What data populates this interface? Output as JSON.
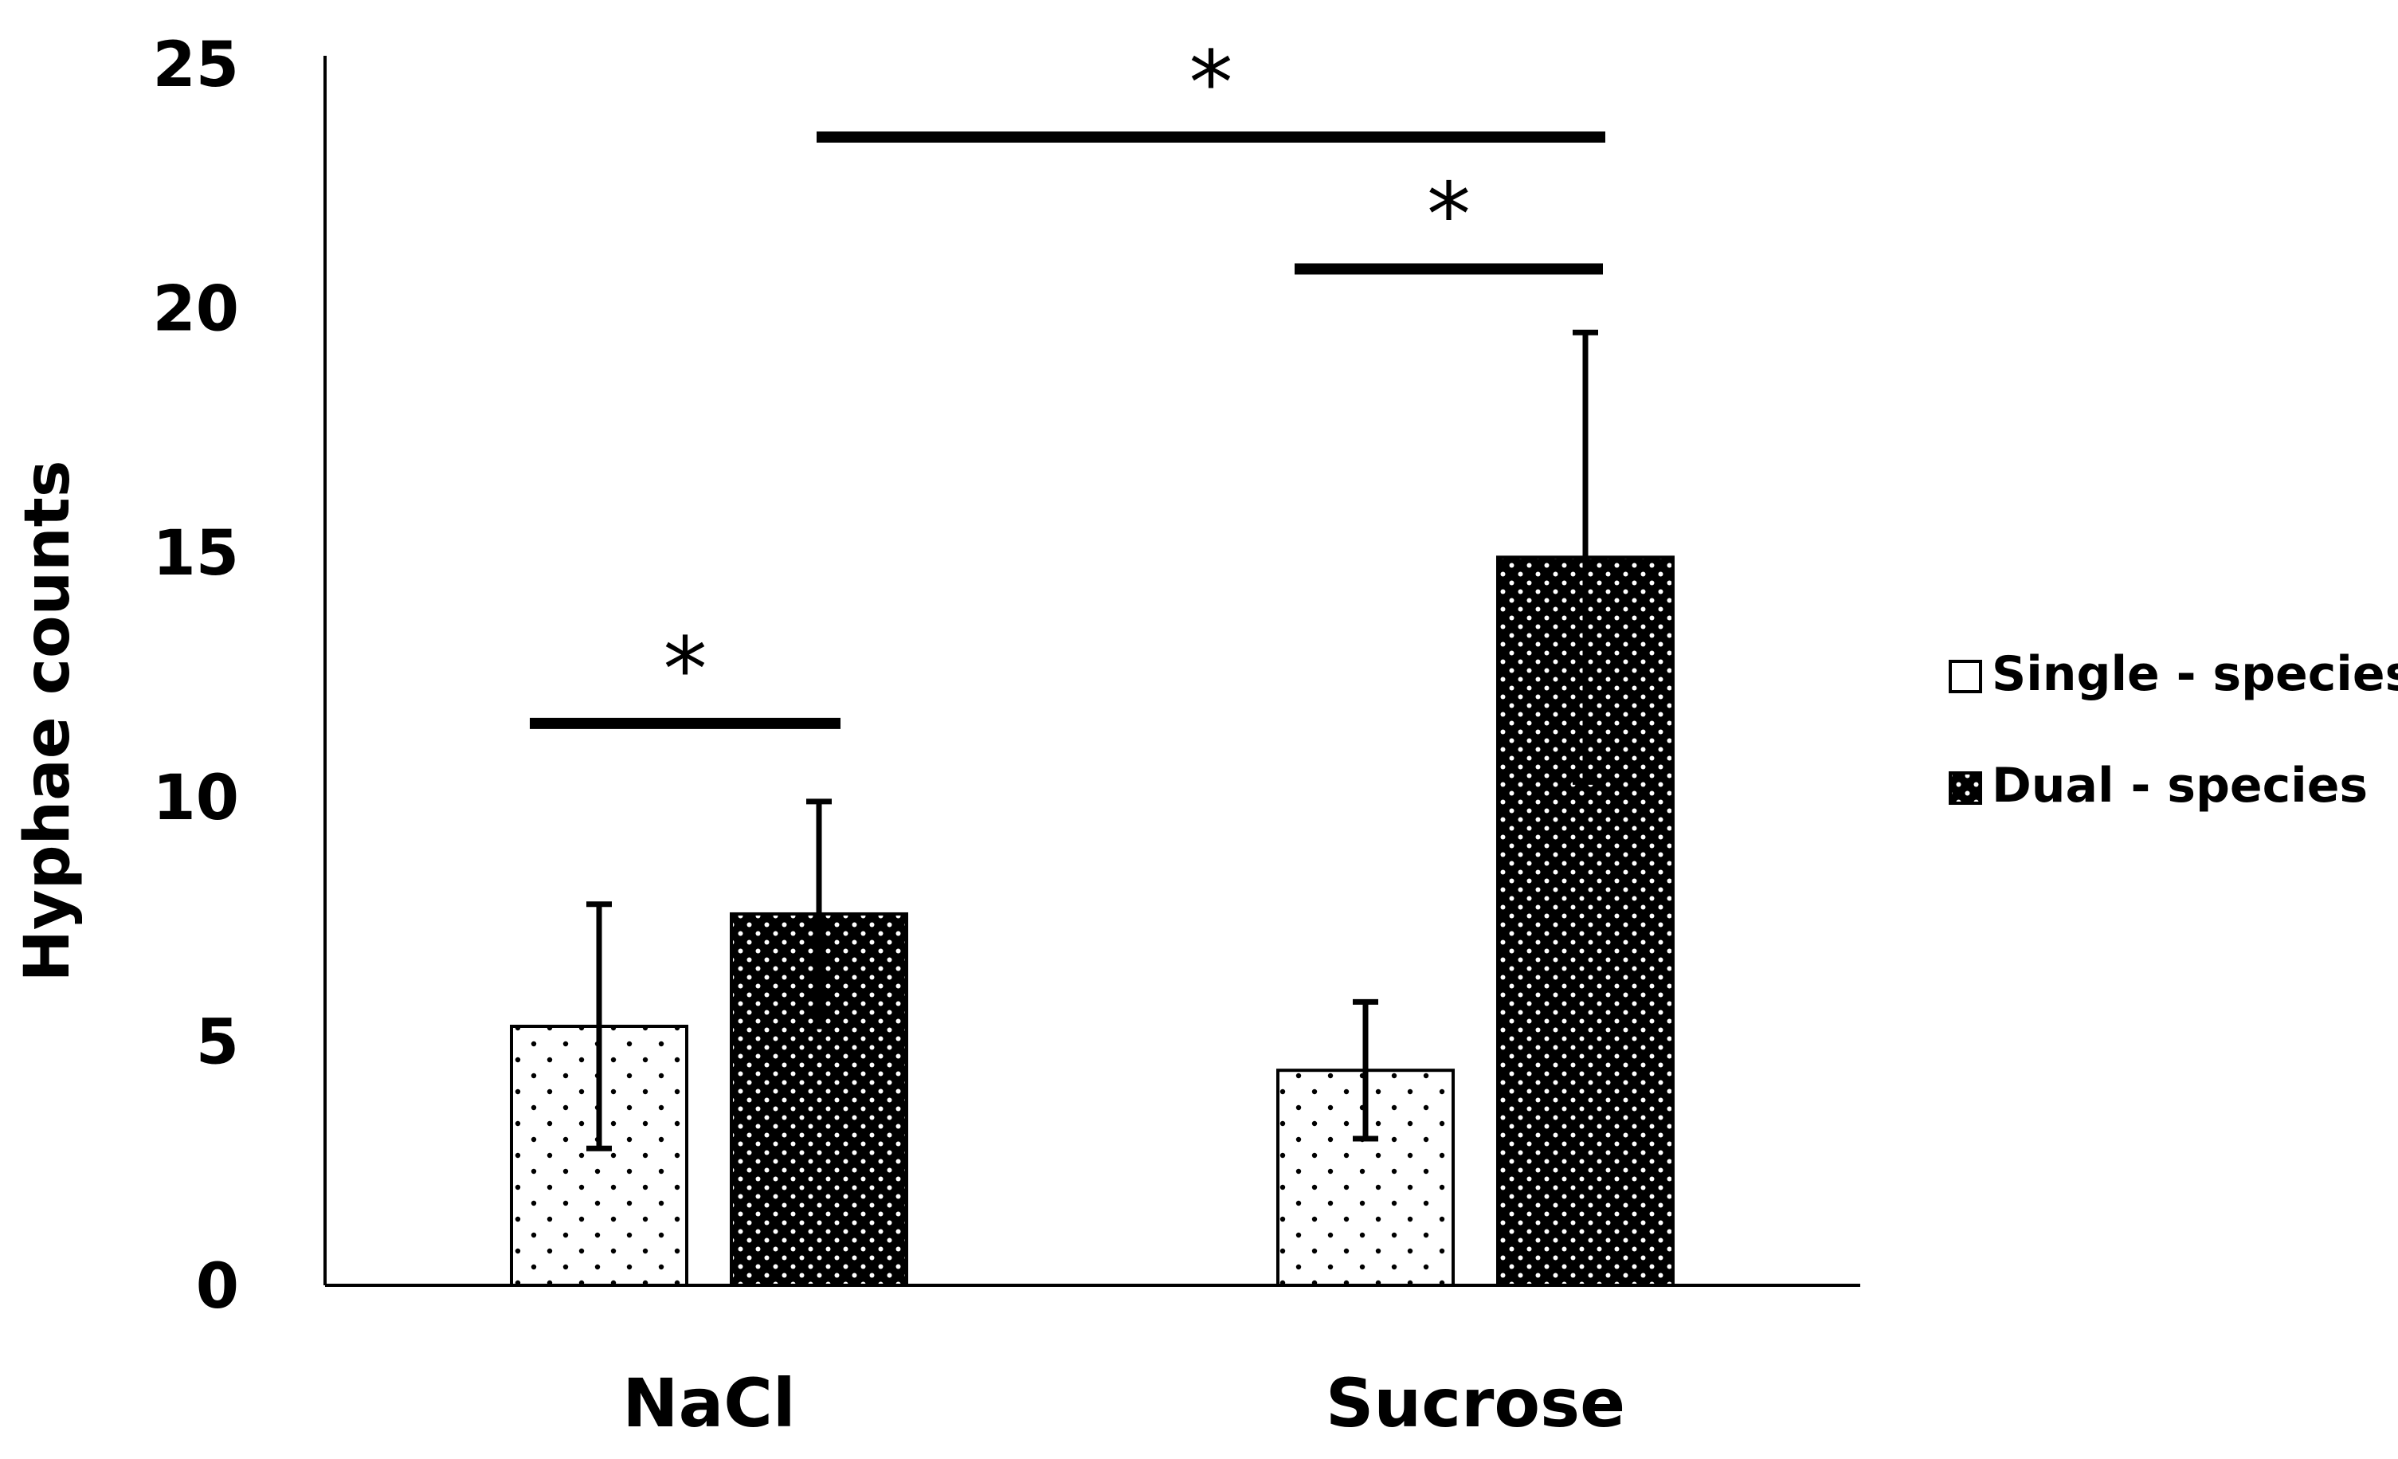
{
  "chart_data": {
    "type": "bar",
    "title": "",
    "xlabel": "",
    "ylabel": "Hyphae counts",
    "ylim": [
      0,
      25
    ],
    "yticks": [
      0,
      5,
      10,
      15,
      20,
      25
    ],
    "grid": false,
    "legend_position": "right",
    "categories": [
      "NaCl",
      "Sucrose"
    ],
    "series": [
      {
        "name": "Single - species",
        "values": [
          5.3,
          4.4
        ],
        "error": [
          2.5,
          1.4
        ],
        "fill": "#ffffff",
        "dot_color": "#000000",
        "pattern": "sparse-dots"
      },
      {
        "name": "Dual - species",
        "values": [
          7.6,
          14.9
        ],
        "error": [
          2.3,
          4.6
        ],
        "fill": "#000000",
        "dot_color": "#ffffff",
        "pattern": "dense-dots"
      }
    ],
    "significance": [
      {
        "label": "*",
        "y": 11.5,
        "between": [
          [
            0,
            0
          ],
          [
            0,
            1
          ]
        ]
      },
      {
        "label": "*",
        "y": 20.8,
        "between": [
          [
            1,
            0
          ],
          [
            1,
            1
          ]
        ]
      },
      {
        "label": "*",
        "y": 23.5,
        "between": [
          [
            0,
            1
          ],
          [
            1,
            1
          ]
        ]
      }
    ]
  }
}
